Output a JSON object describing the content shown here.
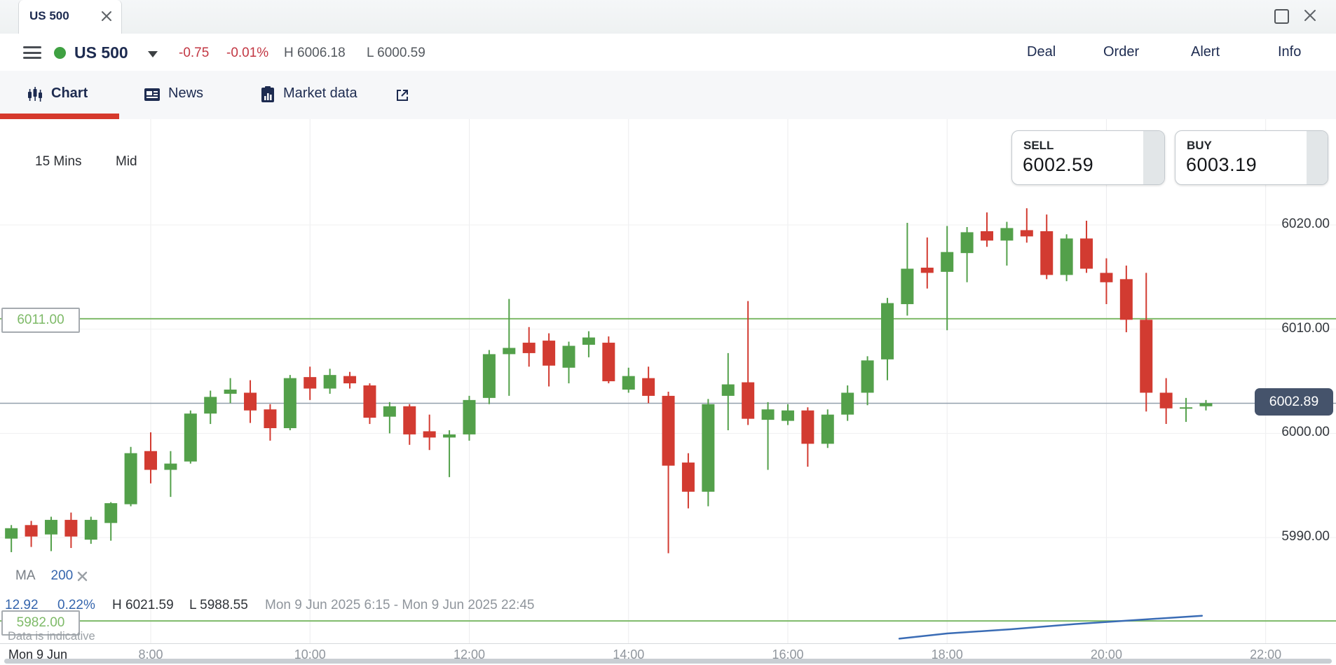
{
  "window": {
    "tab_title": "US 500"
  },
  "header": {
    "symbol": "US 500",
    "change": "-0.75",
    "change_pct": "-0.01%",
    "high": "H 6006.18",
    "low": "L 6000.59",
    "menu": [
      "Deal",
      "Order",
      "Alert",
      "Info"
    ]
  },
  "nav": {
    "tabs": [
      {
        "label": "Chart"
      },
      {
        "label": "News"
      },
      {
        "label": "Market data"
      }
    ]
  },
  "toolbar": {
    "interval": "15 Mins",
    "price_type": "Mid"
  },
  "trade": {
    "sell_label": "SELL",
    "sell_price": "6002.59",
    "buy_label": "BUY",
    "buy_price": "6003.19"
  },
  "legend": {
    "indicator": "MA",
    "period": "200"
  },
  "stats": {
    "change": "12.92",
    "change_pct": "0.22%",
    "high": "H 6021.59",
    "low": "L 5988.55",
    "range": "Mon 9 Jun 2025 6:15 - Mon 9 Jun 2025 22:45",
    "disclaimer": "Data is indicative"
  },
  "colors": {
    "accent_red": "#d6392c",
    "navy": "#1d2b50",
    "change_red": "#c23743",
    "candle_up": "#53a04a",
    "candle_down": "#d23b31",
    "level_green": "#7eba68",
    "ma_blue": "#3a6cb5",
    "link_blue": "#3565ad",
    "badge_bg": "#45536b",
    "status_green": "#3fa142"
  },
  "chart_data": {
    "type": "candlestick",
    "symbol": "US 500",
    "interval": "15 Mins",
    "price_basis": "Mid",
    "current_price": 6002.89,
    "sell": 6002.59,
    "buy": 6003.19,
    "session_high": 6021.59,
    "session_low": 5988.55,
    "session_change": 12.92,
    "session_change_pct": "0.22%",
    "visible_range": "Mon 9 Jun 2025 6:15 - Mon 9 Jun 2025 22:45",
    "levels": [
      {
        "price": 6011.0,
        "label": "6011.00"
      },
      {
        "price": 5982.0,
        "label": "5982.00"
      }
    ],
    "y_axis": {
      "ticks": [
        {
          "price": 6020,
          "label": "6020.00"
        },
        {
          "price": 6010,
          "label": "6010.00"
        },
        {
          "price": 6000,
          "label": "6000.00"
        },
        {
          "price": 5990,
          "label": "5990.00"
        }
      ]
    },
    "x_axis": {
      "ticks": [
        {
          "label": "Mon 9 Jun",
          "hour": null
        },
        {
          "label": "8:00",
          "hour": 8
        },
        {
          "label": "10:00",
          "hour": 10
        },
        {
          "label": "12:00",
          "hour": 12
        },
        {
          "label": "14:00",
          "hour": 14
        },
        {
          "label": "16:00",
          "hour": 16
        },
        {
          "label": "18:00",
          "hour": 18
        },
        {
          "label": "20:00",
          "hour": 20
        },
        {
          "label": "22:00",
          "hour": 22
        }
      ]
    },
    "candles": [
      [
        "06:15",
        5989.9,
        5991.2,
        5988.6,
        5990.9
      ],
      [
        "06:30",
        5991.2,
        5991.6,
        5989.1,
        5990.1
      ],
      [
        "06:45",
        5990.3,
        5992.0,
        5988.7,
        5991.7
      ],
      [
        "07:00",
        5991.7,
        5992.4,
        5989.0,
        5990.1
      ],
      [
        "07:15",
        5989.8,
        5992.0,
        5989.4,
        5991.7
      ],
      [
        "07:30",
        5991.4,
        5993.4,
        5989.7,
        5993.3
      ],
      [
        "07:45",
        5993.2,
        5998.7,
        5993.0,
        5998.1
      ],
      [
        "08:00",
        5998.3,
        6000.1,
        5995.2,
        5996.5
      ],
      [
        "08:15",
        5996.5,
        5998.3,
        5993.9,
        5997.1
      ],
      [
        "08:30",
        5997.3,
        6002.2,
        5997.1,
        6001.9
      ],
      [
        "08:45",
        6001.9,
        6004.1,
        6000.9,
        6003.5
      ],
      [
        "09:00",
        6003.8,
        6005.3,
        6002.9,
        6004.2
      ],
      [
        "09:15",
        6003.9,
        6005.1,
        6001.0,
        6002.2
      ],
      [
        "09:30",
        6002.3,
        6002.8,
        5999.3,
        6000.5
      ],
      [
        "09:45",
        6000.5,
        6005.6,
        6000.3,
        6005.3
      ],
      [
        "10:00",
        6005.4,
        6006.4,
        6003.2,
        6004.3
      ],
      [
        "10:15",
        6004.3,
        6006.2,
        6003.8,
        6005.6
      ],
      [
        "10:30",
        6005.5,
        6005.9,
        6004.3,
        6004.8
      ],
      [
        "10:45",
        6004.6,
        6004.8,
        6000.9,
        6001.5
      ],
      [
        "11:00",
        6001.6,
        6003.0,
        6000.0,
        6002.6
      ],
      [
        "11:15",
        6002.6,
        6002.8,
        5998.9,
        5999.9
      ],
      [
        "11:30",
        6000.2,
        6001.8,
        5998.4,
        5999.6
      ],
      [
        "11:45",
        5999.6,
        6000.3,
        5995.8,
        5999.9
      ],
      [
        "12:00",
        5999.9,
        6003.6,
        5999.3,
        6003.2
      ],
      [
        "12:15",
        6003.4,
        6008.0,
        6002.8,
        6007.6
      ],
      [
        "12:30",
        6007.6,
        6012.9,
        6003.6,
        6008.2
      ],
      [
        "12:45",
        6008.7,
        6010.2,
        6006.4,
        6007.7
      ],
      [
        "13:00",
        6008.9,
        6009.6,
        6004.5,
        6006.5
      ],
      [
        "13:15",
        6006.3,
        6008.8,
        6004.8,
        6008.4
      ],
      [
        "13:30",
        6008.5,
        6009.8,
        6007.3,
        6009.2
      ],
      [
        "13:45",
        6008.7,
        6009.3,
        6004.8,
        6005.0
      ],
      [
        "14:00",
        6004.2,
        6006.3,
        6003.9,
        6005.5
      ],
      [
        "14:15",
        6005.3,
        6006.4,
        6002.9,
        6003.6
      ],
      [
        "14:30",
        6003.6,
        6004.0,
        5988.5,
        5996.9
      ],
      [
        "14:45",
        5997.2,
        5998.1,
        5992.8,
        5994.4
      ],
      [
        "15:00",
        5994.4,
        6003.3,
        5993.0,
        6002.8
      ],
      [
        "15:15",
        6003.6,
        6007.7,
        6000.3,
        6004.7
      ],
      [
        "15:30",
        6004.9,
        6012.7,
        6000.8,
        6001.4
      ],
      [
        "15:45",
        6001.3,
        6003.0,
        5996.5,
        6002.3
      ],
      [
        "16:00",
        6001.2,
        6002.8,
        6000.8,
        6002.2
      ],
      [
        "16:15",
        6002.2,
        6002.5,
        5996.8,
        5999.0
      ],
      [
        "16:30",
        5999.0,
        6002.3,
        5998.6,
        6001.8
      ],
      [
        "16:45",
        6001.8,
        6004.6,
        6001.2,
        6003.9
      ],
      [
        "17:00",
        6003.9,
        6007.4,
        6002.7,
        6007.0
      ],
      [
        "17:15",
        6007.1,
        6013.0,
        6005.1,
        6012.5
      ],
      [
        "17:30",
        6012.4,
        6020.2,
        6011.3,
        6015.8
      ],
      [
        "17:45",
        6015.9,
        6018.8,
        6013.9,
        6015.4
      ],
      [
        "18:00",
        6015.5,
        6019.9,
        6009.9,
        6017.4
      ],
      [
        "18:15",
        6017.3,
        6019.8,
        6014.5,
        6019.3
      ],
      [
        "18:30",
        6019.4,
        6021.2,
        6017.9,
        6018.5
      ],
      [
        "18:45",
        6018.5,
        6020.3,
        6016.1,
        6019.7
      ],
      [
        "19:00",
        6019.5,
        6021.6,
        6018.3,
        6018.9
      ],
      [
        "19:15",
        6019.4,
        6021.0,
        6014.8,
        6015.2
      ],
      [
        "19:30",
        6015.2,
        6019.1,
        6014.6,
        6018.7
      ],
      [
        "19:45",
        6018.7,
        6020.4,
        6015.4,
        6015.8
      ],
      [
        "20:00",
        6015.4,
        6016.8,
        6012.4,
        6014.5
      ],
      [
        "20:15",
        6014.8,
        6016.1,
        6009.7,
        6010.9
      ],
      [
        "20:30",
        6010.9,
        6015.4,
        6002.1,
        6003.9
      ],
      [
        "20:45",
        6003.9,
        6005.3,
        6000.9,
        6002.4
      ],
      [
        "21:00",
        6002.4,
        6003.4,
        6001.1,
        6002.5
      ],
      [
        "21:15",
        6002.6,
        6003.2,
        6002.2,
        6002.9
      ]
    ],
    "ma200": {
      "period": 200,
      "points": [
        [
          17.4,
          5980.3
        ],
        [
          18.0,
          5980.8
        ],
        [
          18.8,
          5981.2
        ],
        [
          19.6,
          5981.7
        ],
        [
          20.4,
          5982.1
        ],
        [
          21.2,
          5982.5
        ]
      ]
    }
  }
}
